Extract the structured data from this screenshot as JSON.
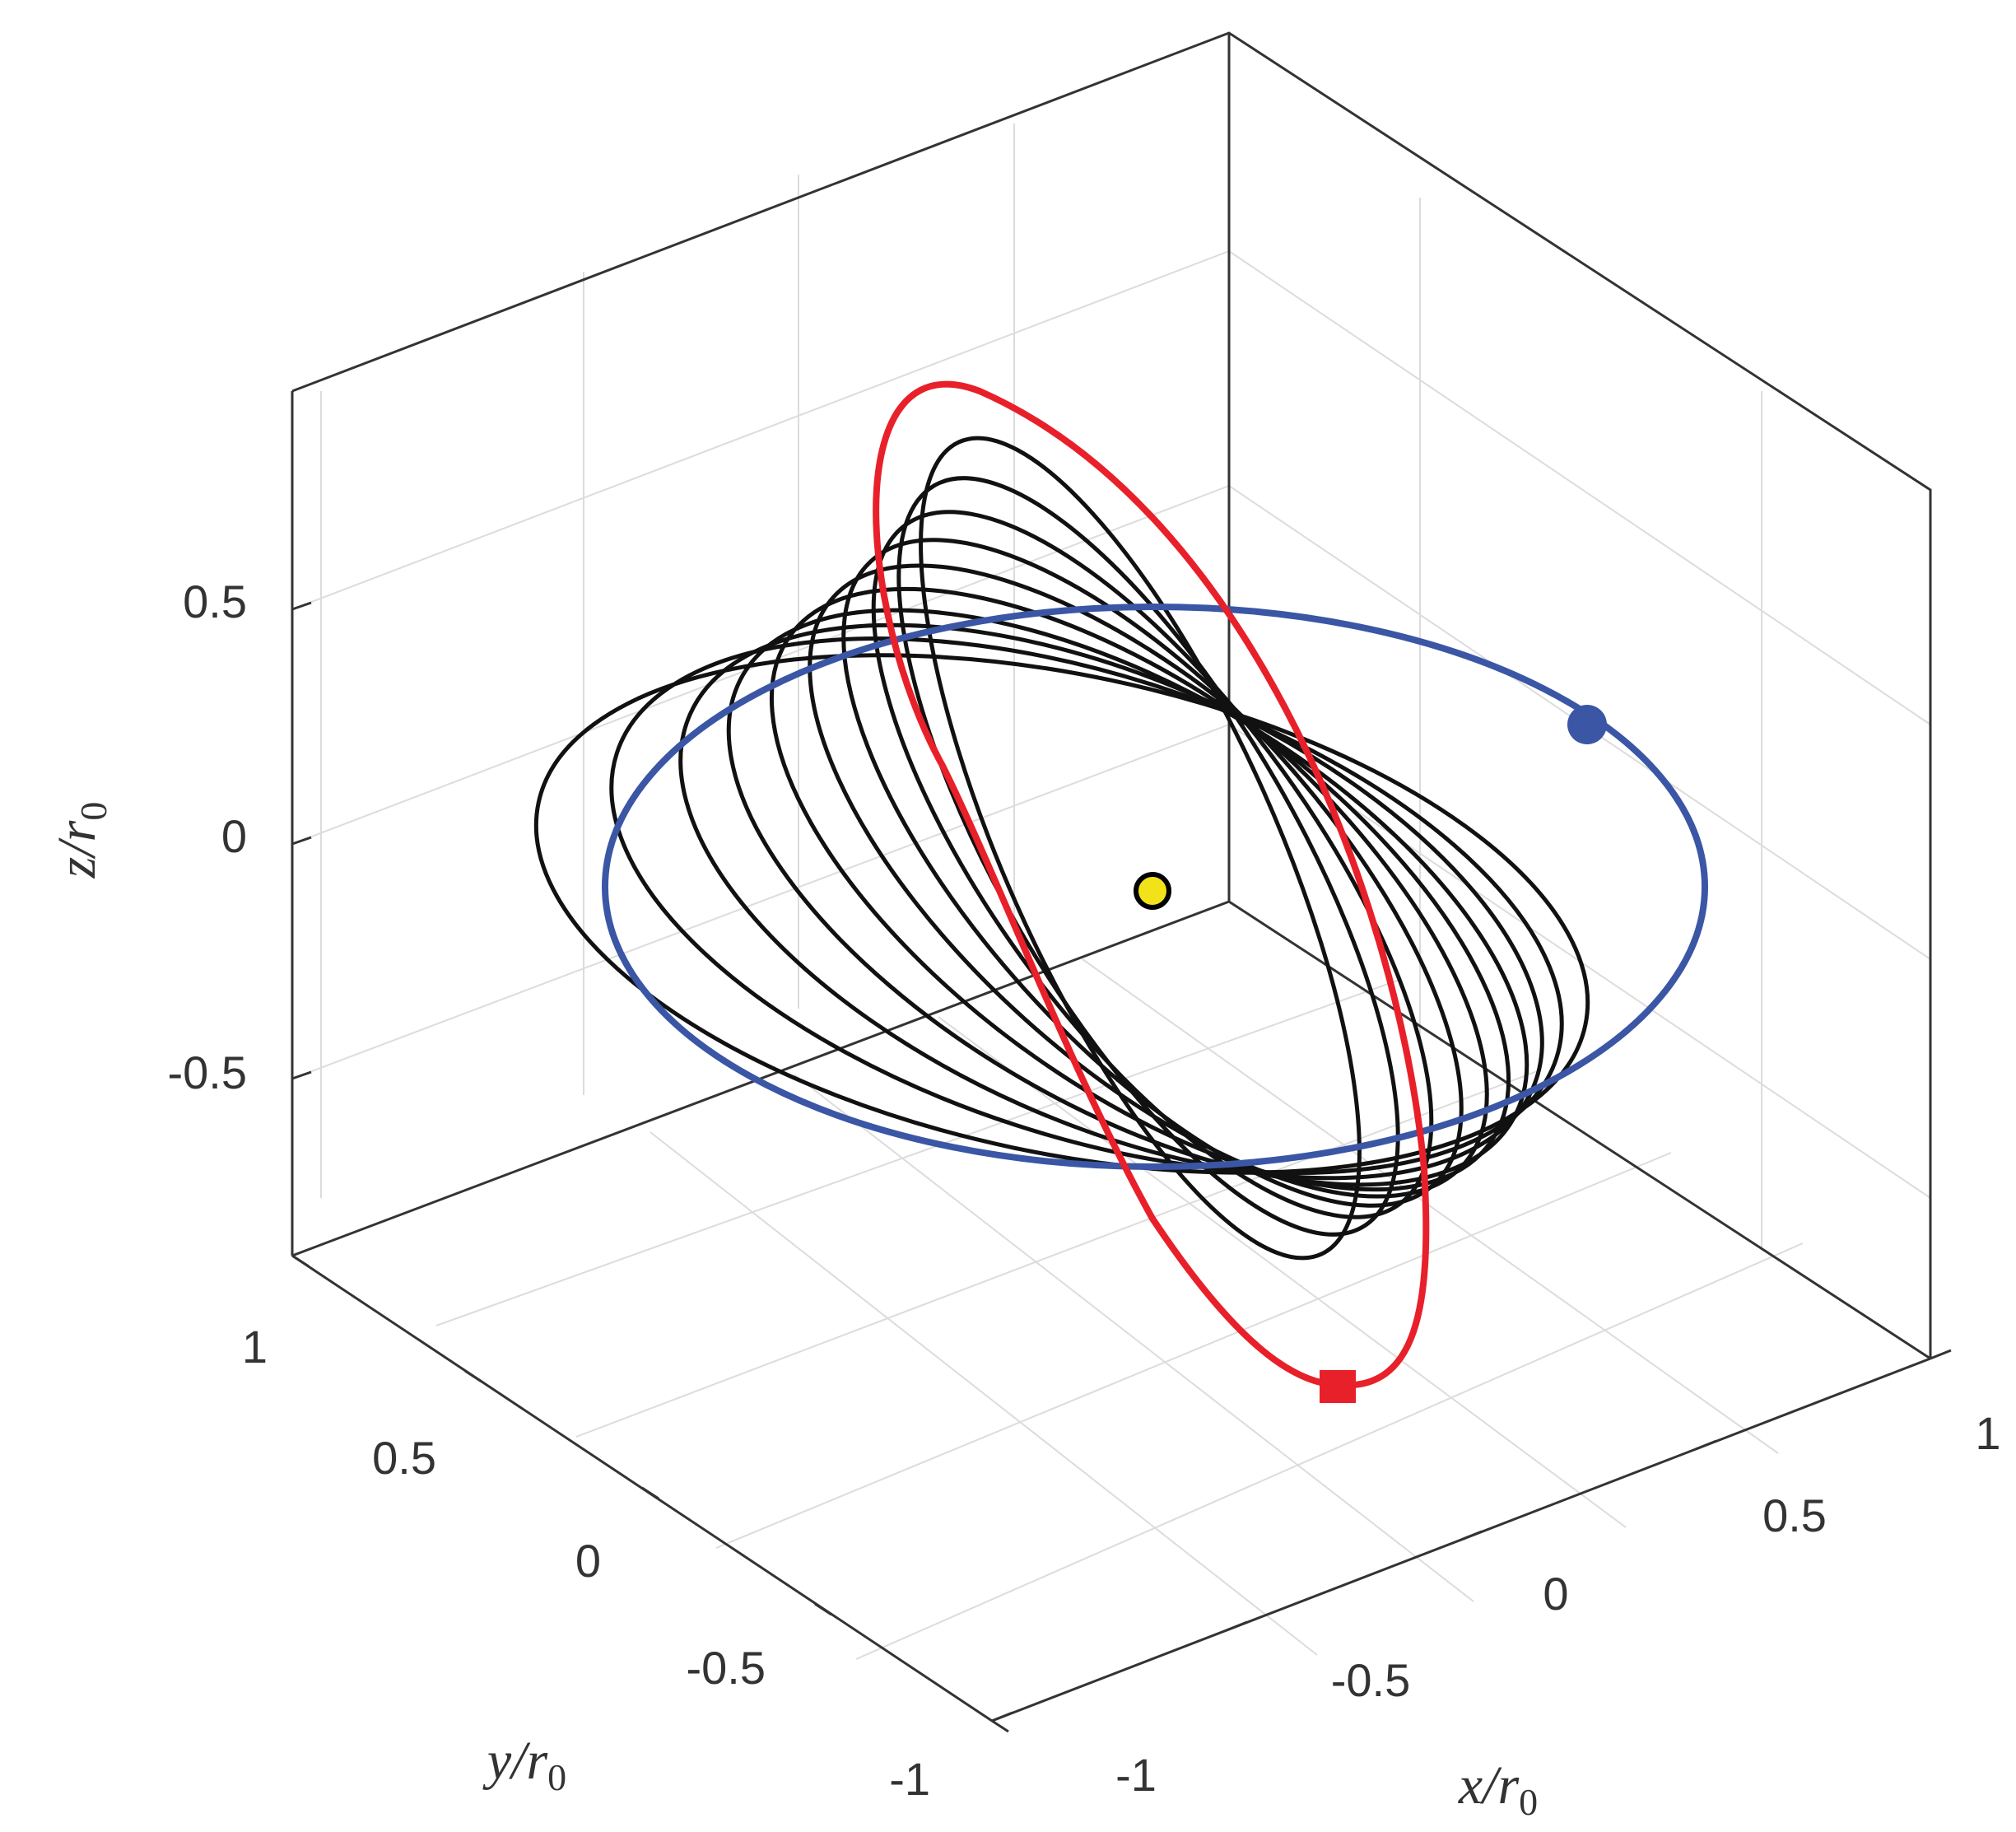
{
  "chart_data": {
    "type": "line3d",
    "title": "",
    "xlabel": "x/r0",
    "ylabel": "y/r0",
    "zlabel": "z/r0",
    "axis_labels": {
      "x": {
        "main": "x/r",
        "sub": "0"
      },
      "y": {
        "main": "y/r",
        "sub": "0"
      },
      "z": {
        "main": "z/r",
        "sub": "0"
      }
    },
    "xlim": [
      -1,
      1
    ],
    "ylim": [
      -1,
      1
    ],
    "zlim": [
      -0.85,
      0.85
    ],
    "xticks": [
      "-1",
      "-0.5",
      "0",
      "0.5",
      "1"
    ],
    "yticks": [
      "-1",
      "-0.5",
      "0",
      "0.5",
      "1"
    ],
    "zticks": [
      "-0.5",
      "0",
      "0.5"
    ],
    "grid": true,
    "view": "3d box, default azimuth",
    "series": [
      {
        "color": "#000000",
        "description_type": "family of elliptical orbits (black)",
        "orbits_approx": [
          {
            "center": [
              -0.15,
              -0.12,
              -0.05
            ],
            "semi_axis_a": 1.0,
            "semi_axis_b": 0.45,
            "tilt_deg": 12
          },
          {
            "center": [
              -0.1,
              -0.08,
              -0.05
            ],
            "semi_axis_a": 0.95,
            "semi_axis_b": 0.42,
            "tilt_deg": 20
          },
          {
            "center": [
              -0.05,
              -0.05,
              -0.04
            ],
            "semi_axis_a": 0.92,
            "semi_axis_b": 0.4,
            "tilt_deg": 28
          },
          {
            "center": [
              0.0,
              -0.02,
              -0.03
            ],
            "semi_axis_a": 0.9,
            "semi_axis_b": 0.38,
            "tilt_deg": 36
          }
        ]
      },
      {
        "color": "#3a56a5",
        "description_type": "initial circular orbit (blue)"
      },
      {
        "color": "#e8202a",
        "description_type": "final orbit (red)"
      }
    ],
    "markers": [
      {
        "shape": "circle",
        "color": "#3a56a5",
        "role": "start point on blue orbit"
      },
      {
        "shape": "square",
        "color": "#e8202a",
        "role": "end point on red orbit"
      },
      {
        "shape": "circle",
        "color": "#f2e21a",
        "edge": "#000000",
        "role": "central body"
      }
    ]
  },
  "colors": {
    "box": "#333333",
    "grid": "#dcdcdc",
    "black_orbit": "#111111",
    "blue_orbit": "#3a56a5",
    "red_orbit": "#e8202a",
    "center_body": "#f2e21a"
  }
}
